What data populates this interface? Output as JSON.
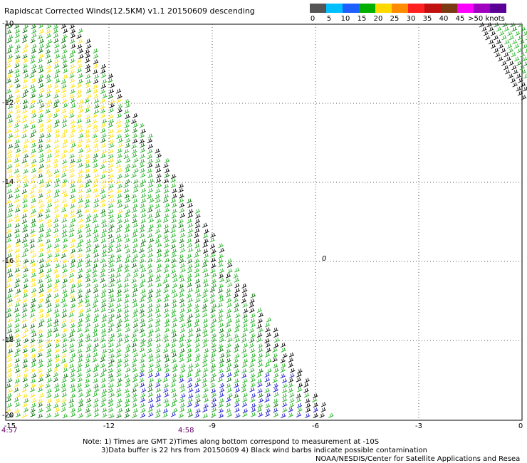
{
  "title": "Rapidscat Corrected Winds(12.5KM) v1.1 20150609 descending",
  "legend": {
    "colors": [
      "#555555",
      "#00bfff",
      "#1e60ff",
      "#00b000",
      "#ffd800",
      "#ff8c00",
      "#ff2020",
      "#c01010",
      "#7b3a14",
      "#ff00ff",
      "#a000c0",
      "#5a0096"
    ],
    "labels": [
      "0",
      "5",
      "10",
      "15",
      "20",
      "25",
      "30",
      "35",
      "40",
      "45",
      ">50 knots"
    ]
  },
  "map": {
    "lat_labels": [
      "-10",
      "-12",
      "-14",
      "-16",
      "-18",
      "-20"
    ],
    "lon_labels": [
      "-15",
      "-12",
      "-9",
      "-6",
      "-3",
      "0"
    ],
    "times": [
      "4:57",
      "4:58"
    ],
    "annotation": "0",
    "colors": {
      "green": "#22b022",
      "dark_green": "#0a6e0a",
      "yellow": "#ffe000",
      "blue": "#1818c8",
      "black": "#000000",
      "grid": "#555555"
    }
  },
  "notes": {
    "line1": "Note: 1) Times are GMT 2)Times along bottom correspond to measurement at -10S",
    "line2": "3)Data buffer is 22 hrs from 20150609 4) Black wind barbs indicate possible contamination",
    "line3": "NOAA/NESDIS/Center for Satellite Applications and Resea"
  }
}
